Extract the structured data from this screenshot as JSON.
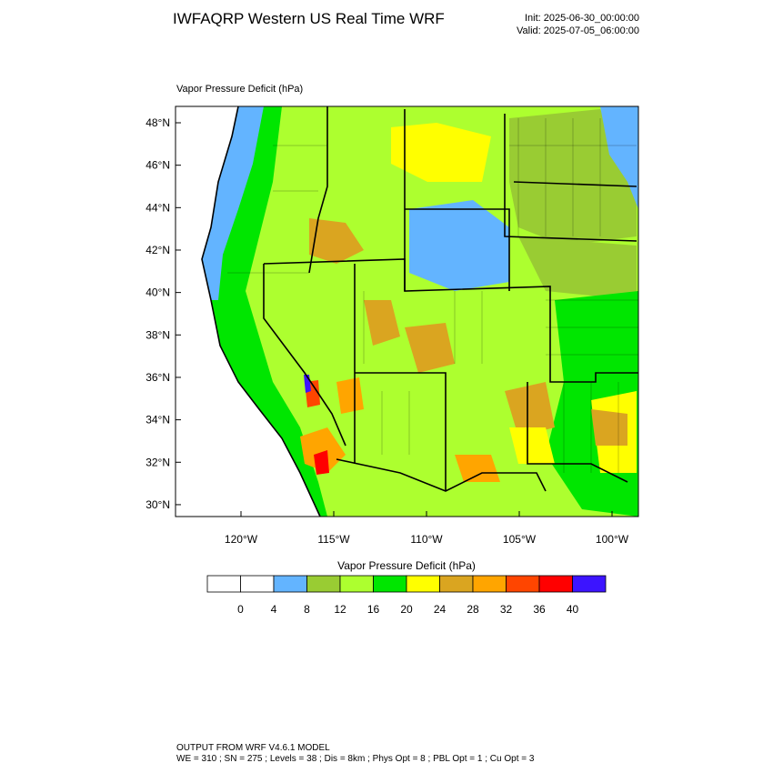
{
  "header": {
    "title": "IWFAQRP Western US Real Time WRF",
    "init": "Init: 2025-06-30_00:00:00",
    "valid": "Valid: 2025-07-05_06:00:00"
  },
  "map": {
    "field_label": "Vapor Pressure Deficit   (hPa)",
    "lat_ticks": [
      {
        "value": 48,
        "label": "48°N"
      },
      {
        "value": 46,
        "label": "46°N"
      },
      {
        "value": 44,
        "label": "44°N"
      },
      {
        "value": 42,
        "label": "42°N"
      },
      {
        "value": 40,
        "label": "40°N"
      },
      {
        "value": 38,
        "label": "38°N"
      },
      {
        "value": 36,
        "label": "36°N"
      },
      {
        "value": 34,
        "label": "34°N"
      },
      {
        "value": 32,
        "label": "32°N"
      },
      {
        "value": 30,
        "label": "30°N"
      }
    ],
    "lon_ticks": [
      {
        "value": -120,
        "label": "120°W"
      },
      {
        "value": -115,
        "label": "115°W"
      },
      {
        "value": -110,
        "label": "110°W"
      },
      {
        "value": -105,
        "label": "105°W"
      },
      {
        "value": -100,
        "label": "100°W"
      }
    ]
  },
  "colorbar": {
    "title": "Vapor Pressure Deficit  (hPa)",
    "colors": [
      "#ffffff",
      "#ffffff",
      "#63b4ff",
      "#99cc33",
      "#adff2f",
      "#00e600",
      "#ffff00",
      "#daa520",
      "#ffa500",
      "#ff4500",
      "#ff0000",
      "#3c14ff"
    ],
    "labels": [
      0,
      4,
      8,
      12,
      16,
      20,
      24,
      28,
      32,
      36,
      40
    ]
  },
  "footer": {
    "line1": "OUTPUT FROM WRF V4.6.1 MODEL",
    "line2": "WE = 310 ; SN = 275 ; Levels = 38 ; Dis = 8km ; Phys Opt = 8 ; PBL Opt = 1 ; Cu Opt = 3"
  }
}
